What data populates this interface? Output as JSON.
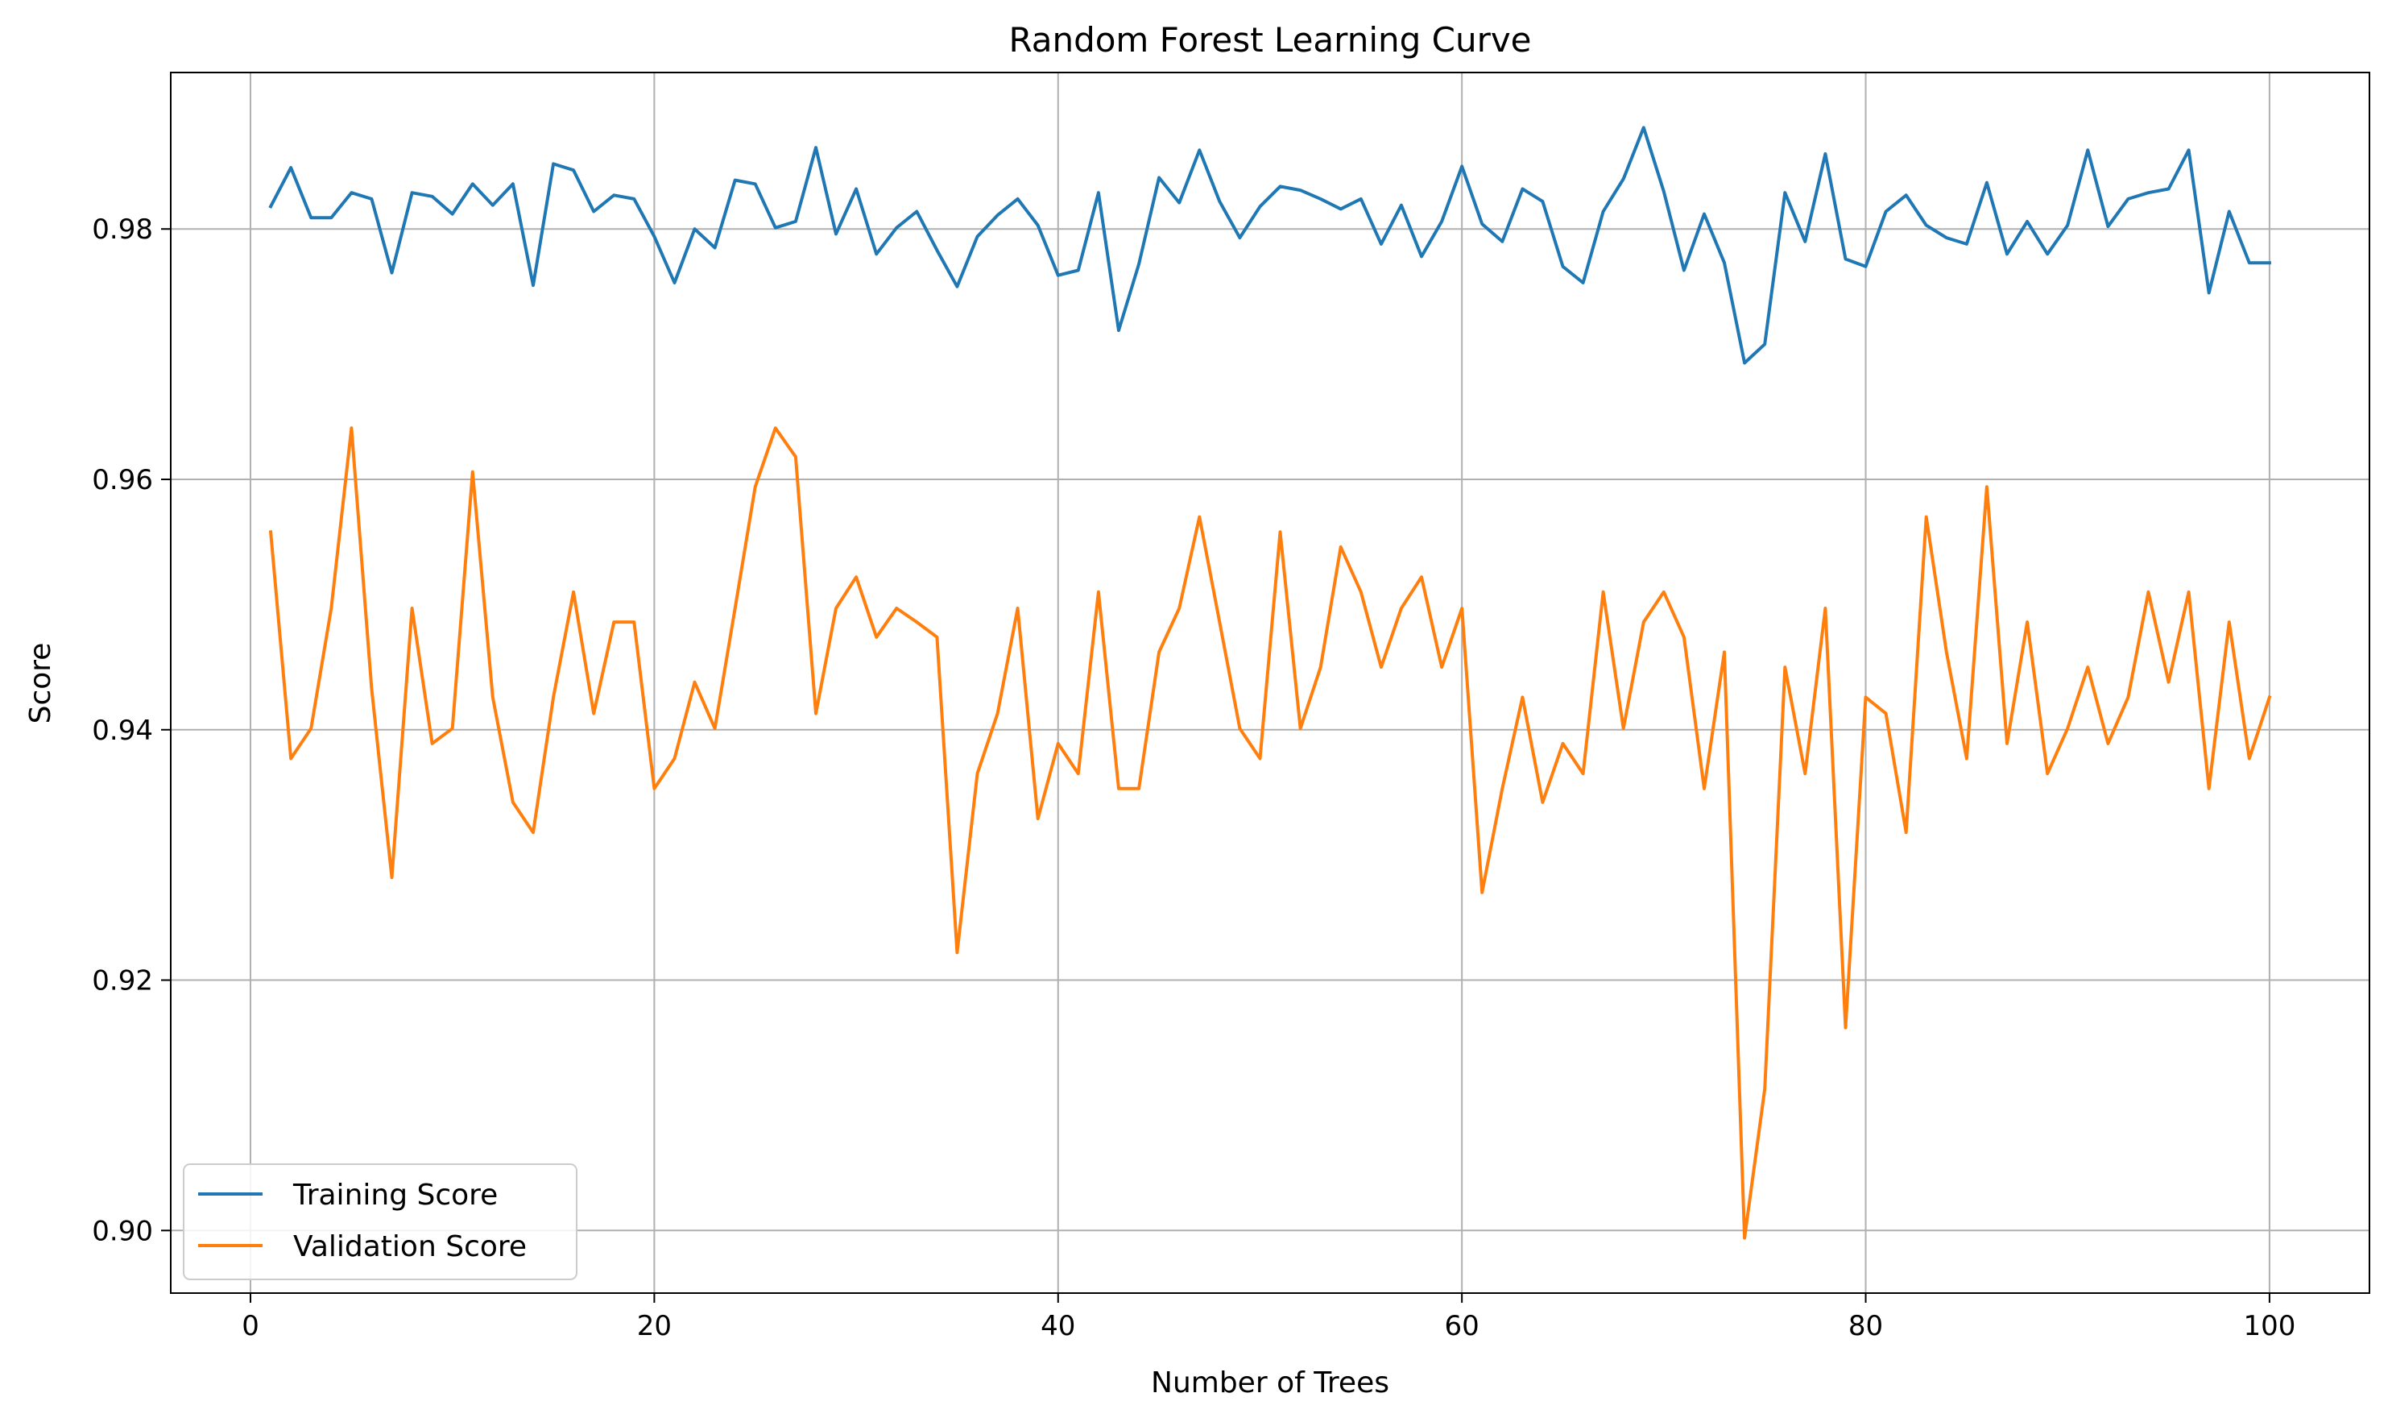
{
  "chart_data": {
    "type": "line",
    "title": "Random Forest Learning Curve",
    "xlabel": "Number of Trees",
    "ylabel": "Score",
    "xlim": [
      -3.95,
      104.95
    ],
    "ylim": [
      0.895,
      0.9925
    ],
    "x_ticks": [
      0,
      20,
      40,
      60,
      80,
      100
    ],
    "x_tick_labels": [
      "0",
      "20",
      "40",
      "60",
      "80",
      "100"
    ],
    "y_ticks": [
      0.9,
      0.92,
      0.94,
      0.96,
      0.98
    ],
    "y_tick_labels": [
      "0.90",
      "0.92",
      "0.94",
      "0.96",
      "0.98"
    ],
    "grid": true,
    "legend_position": "lower-left",
    "x": [
      1,
      2,
      3,
      4,
      5,
      6,
      7,
      8,
      9,
      10,
      11,
      12,
      13,
      14,
      15,
      16,
      17,
      18,
      19,
      20,
      21,
      22,
      23,
      24,
      25,
      26,
      27,
      28,
      29,
      30,
      31,
      32,
      33,
      34,
      35,
      36,
      37,
      38,
      39,
      40,
      41,
      42,
      43,
      44,
      45,
      46,
      47,
      48,
      49,
      50,
      51,
      52,
      53,
      54,
      55,
      56,
      57,
      58,
      59,
      60,
      61,
      62,
      63,
      64,
      65,
      66,
      67,
      68,
      69,
      70,
      71,
      72,
      73,
      74,
      75,
      76,
      77,
      78,
      79,
      80,
      81,
      82,
      83,
      84,
      85,
      86,
      87,
      88,
      89,
      90,
      91,
      92,
      93,
      94,
      95,
      96,
      97,
      98,
      99,
      100
    ],
    "series": [
      {
        "name": "Training Score",
        "color": "#1f77b4",
        "values": [
          0.9818,
          0.9849,
          0.9809,
          0.9809,
          0.9829,
          0.9824,
          0.9765,
          0.9829,
          0.9826,
          0.9812,
          0.9836,
          0.9819,
          0.9836,
          0.9755,
          0.9852,
          0.9847,
          0.9814,
          0.9827,
          0.9824,
          0.9794,
          0.9757,
          0.98,
          0.9785,
          0.9839,
          0.9836,
          0.9801,
          0.9806,
          0.9865,
          0.9796,
          0.9832,
          0.978,
          0.9801,
          0.9814,
          0.9783,
          0.9754,
          0.9794,
          0.9811,
          0.9824,
          0.9803,
          0.9763,
          0.9767,
          0.9829,
          0.9719,
          0.9772,
          0.9841,
          0.9821,
          0.9863,
          0.9822,
          0.9793,
          0.9818,
          0.9834,
          0.9831,
          0.9824,
          0.9816,
          0.9824,
          0.9788,
          0.9819,
          0.9778,
          0.9806,
          0.985,
          0.9804,
          0.979,
          0.9832,
          0.9822,
          0.977,
          0.9757,
          0.9814,
          0.984,
          0.9881,
          0.983,
          0.9767,
          0.9812,
          0.9773,
          0.9693,
          0.9708,
          0.9829,
          0.979,
          0.986,
          0.9776,
          0.977,
          0.9814,
          0.9827,
          0.9803,
          0.9793,
          0.9788,
          0.9837,
          0.978,
          0.9806,
          0.978,
          0.9803,
          0.9863,
          0.9802,
          0.9824,
          0.9829,
          0.9832,
          0.9863,
          0.9749,
          0.9814,
          0.9773,
          0.9773
        ]
      },
      {
        "name": "Validation Score",
        "color": "#ff7f0e",
        "values": [
          0.9558,
          0.9377,
          0.9401,
          0.9497,
          0.9641,
          0.9433,
          0.9282,
          0.9497,
          0.9389,
          0.9401,
          0.9606,
          0.9426,
          0.9342,
          0.9318,
          0.9426,
          0.951,
          0.9413,
          0.9486,
          0.9486,
          0.9353,
          0.9377,
          0.9438,
          0.9401,
          0.9497,
          0.9594,
          0.9641,
          0.9618,
          0.9413,
          0.9497,
          0.9522,
          0.9474,
          0.9497,
          0.9486,
          0.9474,
          0.9222,
          0.9365,
          0.9413,
          0.9497,
          0.9329,
          0.9389,
          0.9365,
          0.951,
          0.9353,
          0.9353,
          0.9462,
          0.9497,
          0.957,
          0.9486,
          0.9401,
          0.9377,
          0.9558,
          0.9401,
          0.945,
          0.9546,
          0.951,
          0.945,
          0.9497,
          0.9522,
          0.945,
          0.9497,
          0.927,
          0.9353,
          0.9426,
          0.9342,
          0.9389,
          0.9365,
          0.951,
          0.9401,
          0.9486,
          0.951,
          0.9474,
          0.9353,
          0.9462,
          0.8994,
          0.9113,
          0.945,
          0.9365,
          0.9497,
          0.9162,
          0.9426,
          0.9413,
          0.9318,
          0.957,
          0.9462,
          0.9377,
          0.9594,
          0.9389,
          0.9486,
          0.9365,
          0.9401,
          0.945,
          0.9389,
          0.9426,
          0.951,
          0.9438,
          0.951,
          0.9353,
          0.9486,
          0.9377,
          0.9426
        ]
      }
    ]
  }
}
